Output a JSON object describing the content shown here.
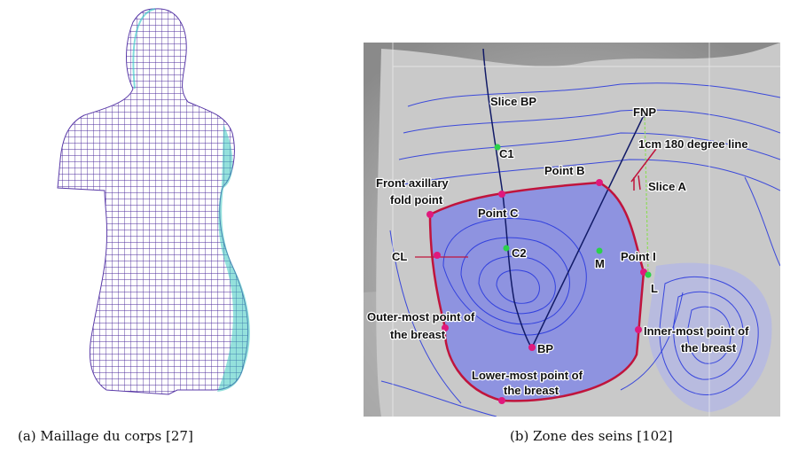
{
  "figure": {
    "subfigures": [
      {
        "caption": "(a) Maillage du corps [27]"
      },
      {
        "caption": "(b) Zone des seins [102]",
        "labels": {
          "slice_bp": "Slice BP",
          "fnp": "FNP",
          "line_180": "1cm 180 degree line",
          "c1": "C1",
          "point_b": "Point B",
          "slice_a": "Slice A",
          "front_axillary": [
            "Front axillary",
            "fold point"
          ],
          "point_c": "Point C",
          "cl": "CL",
          "c2": "C2",
          "m": "M",
          "point_i": "Point I",
          "l": "L",
          "outer_most": [
            "Outer-most point of",
            "the breast"
          ],
          "bp": "BP",
          "inner_most": [
            "Inner-most point of",
            "the breast"
          ],
          "lower_most": [
            "Lower-most point of",
            "the breast"
          ]
        }
      }
    ]
  }
}
